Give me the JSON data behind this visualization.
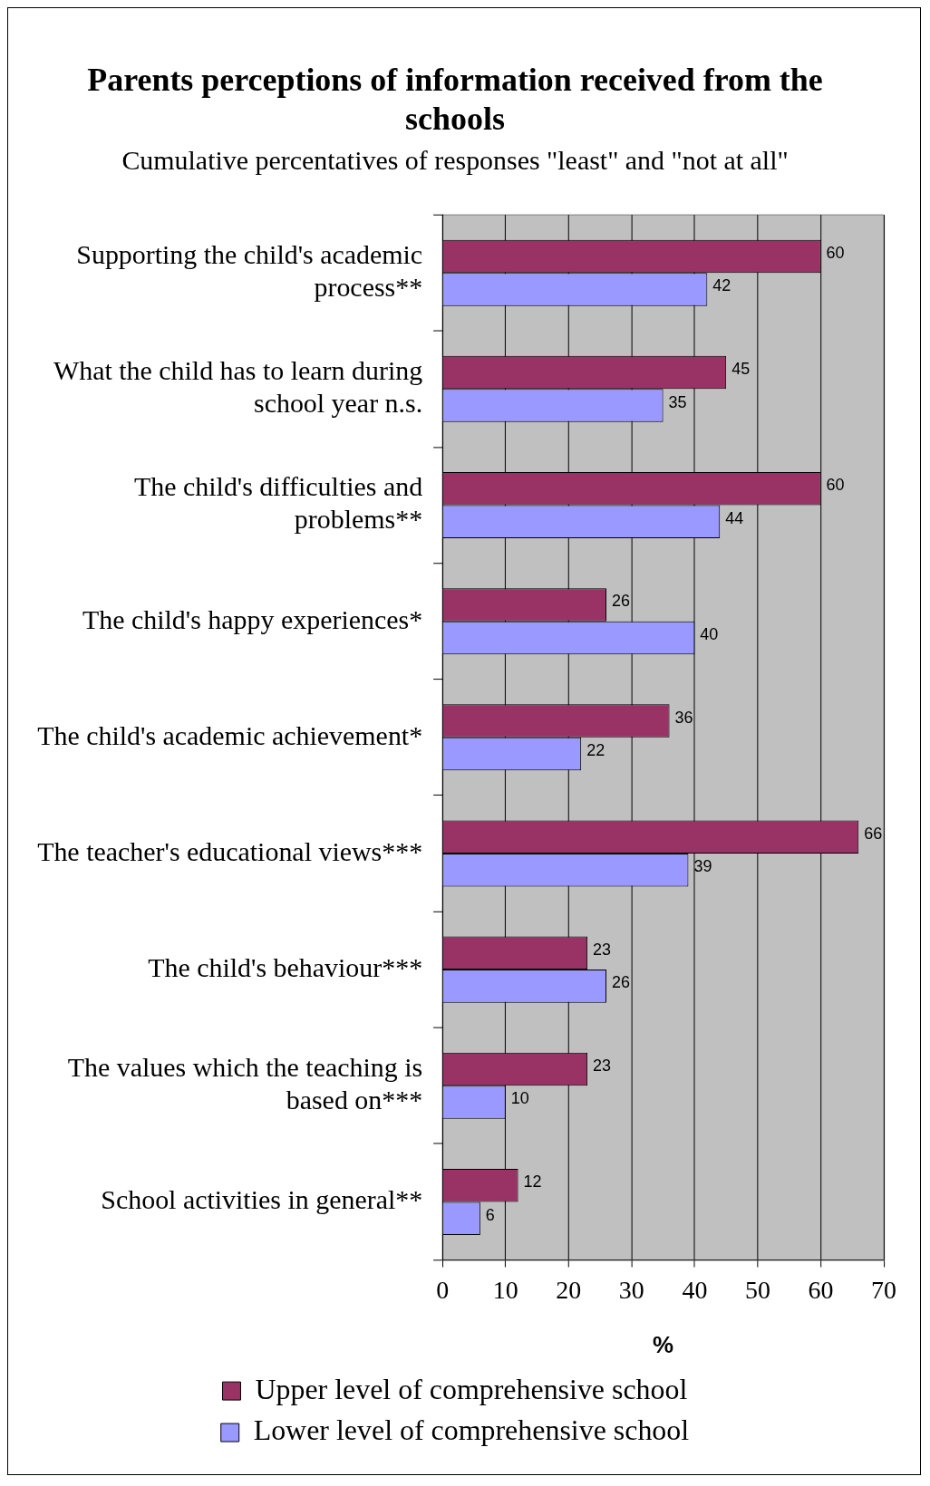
{
  "chart_data": {
    "type": "bar",
    "orientation": "horizontal",
    "title": "Parents perceptions of information received from the schools",
    "subtitle": "Cumulative percentatives of responses \"least\" and \"not at all\"",
    "xlabel": "%",
    "categories": [
      "Supporting the child's academic process**",
      "What the child has to learn during school year n.s.",
      "The child's difficulties and problems**",
      "The child's happy experiences*",
      "The child's academic achievement*",
      "The teacher's educational views***",
      "The child's behaviour***",
      "The values which the teaching is based on***",
      "School activities in general**"
    ],
    "series": [
      {
        "name": "Upper level of comprehensive school",
        "color": "#993366",
        "values": [
          60,
          45,
          60,
          26,
          36,
          66,
          23,
          23,
          12
        ]
      },
      {
        "name": "Lower level of comprehensive school",
        "color": "#9999ff",
        "values": [
          42,
          35,
          44,
          40,
          22,
          39,
          26,
          10,
          6
        ]
      }
    ],
    "xlim": [
      0,
      70
    ],
    "xticks": [
      0,
      10,
      20,
      30,
      40,
      50,
      60,
      70
    ],
    "grid": "x",
    "legend": "bottom",
    "data_labels": true
  }
}
